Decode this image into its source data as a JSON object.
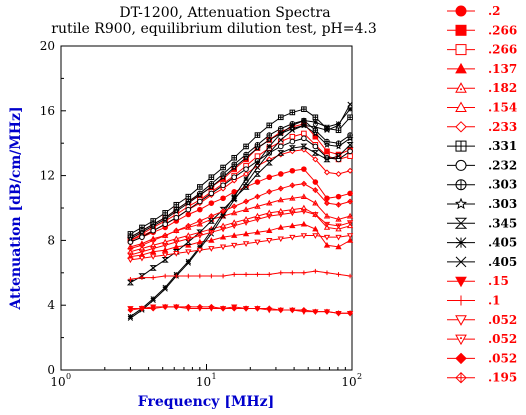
{
  "chart_data": {
    "type": "line",
    "title": "DT-1200, Attenuation Spectra",
    "subtitle": "rutile R900, equilibrium dilution test, pH=4.3",
    "xlabel": "Frequency [MHz]",
    "ylabel": "Attenuation [dB/cm/MHz]",
    "x_scale": "log",
    "xlim": [
      1,
      100
    ],
    "ylim": [
      0,
      20
    ],
    "x_tick_labels": [
      {
        "base": "10",
        "exp": "0",
        "value": 1
      },
      {
        "base": "10",
        "exp": "1",
        "value": 10
      },
      {
        "base": "10",
        "exp": "2",
        "value": 100
      }
    ],
    "y_ticks": [
      "0",
      "4",
      "8",
      "12",
      "16",
      "20"
    ],
    "grid": false,
    "legend_position": "right",
    "x": [
      3,
      3.6,
      4.3,
      5.2,
      6.2,
      7.5,
      9,
      10.8,
      13,
      15.5,
      18.7,
      22.4,
      27,
      32.4,
      38.9,
      46.7,
      56,
      67.3,
      80.8,
      97
    ],
    "series": [
      {
        "name": ".2",
        "color": "#ff0000",
        "marker": "circle-filled",
        "values": [
          7.9,
          8.2,
          8.5,
          8.8,
          9.2,
          9.6,
          9.9,
          10.3,
          10.6,
          11.0,
          11.3,
          11.6,
          11.9,
          12.1,
          12.3,
          12.4,
          11.6,
          10.6,
          10.7,
          10.9
        ]
      },
      {
        "name": ".266",
        "color": "#ff0000",
        "marker": "square-filled",
        "values": [
          8.2,
          8.6,
          9.0,
          9.4,
          9.9,
          10.4,
          10.8,
          11.3,
          11.8,
          12.4,
          13.0,
          13.7,
          14.2,
          14.7,
          15.0,
          15.2,
          14.4,
          13.5,
          13.3,
          13.6
        ]
      },
      {
        "name": ".266",
        "color": "#ff0000",
        "marker": "square-open",
        "values": [
          8.0,
          8.4,
          8.8,
          9.2,
          9.6,
          10.1,
          10.5,
          11.0,
          11.5,
          12.0,
          12.6,
          13.2,
          13.7,
          14.1,
          14.4,
          14.6,
          13.9,
          13.2,
          13.0,
          13.2
        ]
      },
      {
        "name": ".137",
        "color": "#ff0000",
        "marker": "triangle-filled",
        "values": [
          7.0,
          7.1,
          7.3,
          7.4,
          7.6,
          7.7,
          7.9,
          8.0,
          8.2,
          8.3,
          8.4,
          8.5,
          8.6,
          8.8,
          8.9,
          9.0,
          8.7,
          7.7,
          7.6,
          8.0
        ]
      },
      {
        "name": ".182",
        "color": "#ff0000",
        "marker": "triangle-dot",
        "values": [
          7.6,
          7.8,
          8.1,
          8.3,
          8.6,
          8.8,
          9.0,
          9.3,
          9.5,
          9.7,
          9.9,
          10.1,
          10.3,
          10.5,
          10.6,
          10.7,
          10.3,
          9.5,
          9.3,
          9.5
        ]
      },
      {
        "name": ".154",
        "color": "#ff0000",
        "marker": "triangle-open",
        "values": [
          7.3,
          7.5,
          7.7,
          7.9,
          8.1,
          8.3,
          8.5,
          8.7,
          8.9,
          9.1,
          9.3,
          9.5,
          9.7,
          9.8,
          9.9,
          10.0,
          9.6,
          8.8,
          8.7,
          8.9
        ]
      },
      {
        "name": ".233",
        "color": "#ff0000",
        "marker": "diamond-open",
        "values": [
          8.0,
          8.3,
          8.6,
          9.0,
          9.4,
          9.9,
          10.3,
          10.8,
          11.2,
          11.7,
          12.1,
          12.6,
          13.0,
          13.3,
          13.5,
          13.6,
          13.0,
          12.2,
          12.1,
          12.3
        ]
      },
      {
        "name": ".331",
        "color": "#000000",
        "marker": "square-cross",
        "values": [
          8.4,
          8.8,
          9.2,
          9.7,
          10.2,
          10.7,
          11.3,
          11.9,
          12.5,
          13.1,
          13.8,
          14.5,
          15.1,
          15.6,
          15.9,
          16.1,
          15.6,
          14.9,
          14.8,
          15.6
        ]
      },
      {
        "name": ".232",
        "color": "#000000",
        "marker": "circle-open",
        "values": [
          7.9,
          8.2,
          8.6,
          9.0,
          9.4,
          9.9,
          10.4,
          10.9,
          11.4,
          11.9,
          12.4,
          12.9,
          13.4,
          13.8,
          14.1,
          14.3,
          13.8,
          13.1,
          13.0,
          13.5
        ]
      },
      {
        "name": ".303",
        "color": "#000000",
        "marker": "circle-cross",
        "values": [
          8.2,
          8.6,
          9.0,
          9.4,
          9.9,
          10.4,
          10.9,
          11.5,
          12.1,
          12.7,
          13.3,
          13.9,
          14.5,
          14.9,
          15.2,
          15.4,
          14.8,
          14.1,
          14.0,
          14.5
        ]
      },
      {
        "name": ".303",
        "color": "#000000",
        "marker": "star-open",
        "values": [
          8.1,
          8.5,
          8.9,
          9.3,
          9.8,
          10.3,
          10.8,
          11.3,
          11.9,
          12.5,
          13.1,
          13.7,
          14.2,
          14.6,
          14.9,
          15.1,
          14.6,
          13.9,
          13.8,
          14.3
        ]
      },
      {
        "name": ".345",
        "color": "#000000",
        "marker": "hourglass",
        "values": [
          5.4,
          5.8,
          6.3,
          6.8,
          7.3,
          7.9,
          8.5,
          9.2,
          9.9,
          10.6,
          11.3,
          12.1,
          12.8,
          13.4,
          13.7,
          13.8,
          13.4,
          13.0,
          13.2,
          13.9
        ]
      },
      {
        "name": ".405",
        "color": "#000000",
        "marker": "asterisk",
        "values": [
          3.3,
          3.8,
          4.4,
          5.1,
          5.9,
          6.7,
          7.6,
          8.6,
          9.7,
          10.7,
          11.8,
          12.8,
          13.8,
          14.6,
          15.1,
          15.4,
          15.3,
          15.0,
          15.2,
          16.1
        ]
      },
      {
        "name": ".405",
        "color": "#000000",
        "marker": "cross",
        "values": [
          3.2,
          3.7,
          4.3,
          5.0,
          5.8,
          6.6,
          7.5,
          8.4,
          9.5,
          10.5,
          11.5,
          12.5,
          13.4,
          14.2,
          14.8,
          15.1,
          15.0,
          14.8,
          15.1,
          16.4
        ]
      },
      {
        "name": ".15",
        "color": "#ff0000",
        "marker": "triangle-down-filled",
        "values": [
          3.8,
          3.8,
          3.9,
          3.9,
          3.9,
          3.8,
          3.8,
          3.8,
          3.8,
          3.9,
          3.8,
          3.8,
          3.7,
          3.7,
          3.7,
          3.6,
          3.6,
          3.6,
          3.5,
          3.5
        ]
      },
      {
        "name": ".1",
        "color": "#ff0000",
        "marker": "plus",
        "values": [
          5.6,
          5.7,
          5.7,
          5.8,
          5.8,
          5.8,
          5.8,
          5.8,
          5.8,
          5.9,
          5.9,
          5.9,
          5.9,
          6.0,
          6.0,
          6.0,
          6.1,
          6.0,
          5.9,
          5.8
        ]
      },
      {
        "name": ".052",
        "color": "#ff0000",
        "marker": "triangle-down-open",
        "values": [
          6.8,
          6.9,
          7.0,
          7.1,
          7.2,
          7.3,
          7.4,
          7.5,
          7.6,
          7.7,
          7.8,
          7.9,
          8.0,
          8.1,
          8.2,
          8.3,
          8.3,
          8.2,
          8.2,
          8.3
        ]
      },
      {
        "name": ".052",
        "color": "#ff0000",
        "marker": "triangle-down-dot",
        "values": [
          7.1,
          7.3,
          7.5,
          7.7,
          7.9,
          8.1,
          8.3,
          8.5,
          8.7,
          8.9,
          9.1,
          9.3,
          9.5,
          9.6,
          9.7,
          9.8,
          9.6,
          9.0,
          8.9,
          9.1
        ]
      },
      {
        "name": ".052",
        "color": "#ff0000",
        "marker": "diamond-filled",
        "values": [
          3.7,
          3.8,
          3.8,
          3.9,
          3.9,
          3.9,
          3.9,
          3.9,
          3.8,
          3.8,
          3.8,
          3.8,
          3.8,
          3.7,
          3.7,
          3.7,
          3.6,
          3.6,
          3.5,
          3.5
        ]
      },
      {
        "name": ".195",
        "color": "#ff0000",
        "marker": "diamond-cross",
        "values": [
          7.5,
          7.7,
          8.0,
          8.3,
          8.6,
          8.9,
          9.2,
          9.5,
          9.8,
          10.1,
          10.4,
          10.7,
          11.0,
          11.2,
          11.4,
          11.5,
          11.1,
          10.3,
          10.2,
          10.4
        ]
      }
    ]
  }
}
